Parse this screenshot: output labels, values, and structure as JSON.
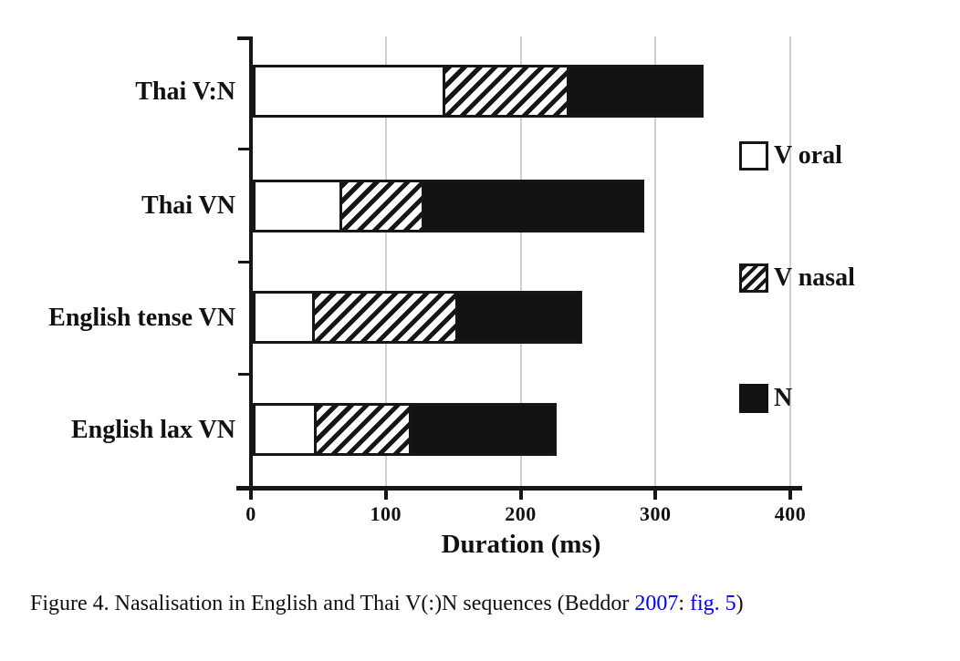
{
  "chart_data": {
    "type": "bar",
    "orientation": "horizontal",
    "stacked": true,
    "title": "",
    "xlabel": "Duration (ms)",
    "ylabel": "",
    "xlim": [
      0,
      400
    ],
    "xticks": [
      0,
      100,
      200,
      300,
      400
    ],
    "grid": "vertical light gray gridlines at 100/200/300/400",
    "legend_position": "right",
    "categories": [
      "Thai V:N",
      "Thai VN",
      "English tense VN",
      "English lax VN"
    ],
    "series": [
      {
        "name": "V oral",
        "style": "white",
        "values": [
          139,
          62,
          42,
          43
        ]
      },
      {
        "name": "V nasal",
        "style": "hatched",
        "values": [
          92,
          61,
          106,
          71
        ]
      },
      {
        "name": "N",
        "style": "black",
        "values": [
          99,
          163,
          92,
          107
        ]
      }
    ],
    "category_totals_ms": [
      330,
      286,
      240,
      221
    ]
  },
  "legend": {
    "items": [
      {
        "label": "V oral",
        "swatch": "white-box"
      },
      {
        "label": "V nasal",
        "swatch": "hatched-box"
      },
      {
        "label": "N",
        "swatch": "black-box"
      }
    ]
  },
  "caption": {
    "text_before_links": "Figure 4. Nasalisation in English and Thai V(:)N sequences (Beddor ",
    "year_link": "2007",
    "between_links": ": ",
    "fig_link": "fig. 5",
    "text_after_links": ")"
  },
  "colors": {
    "background": "#ffffff",
    "axis_and_bars": "#161616",
    "gridline": "#cfcfcf",
    "link_blue": "#0000ee",
    "text": "#111111"
  }
}
